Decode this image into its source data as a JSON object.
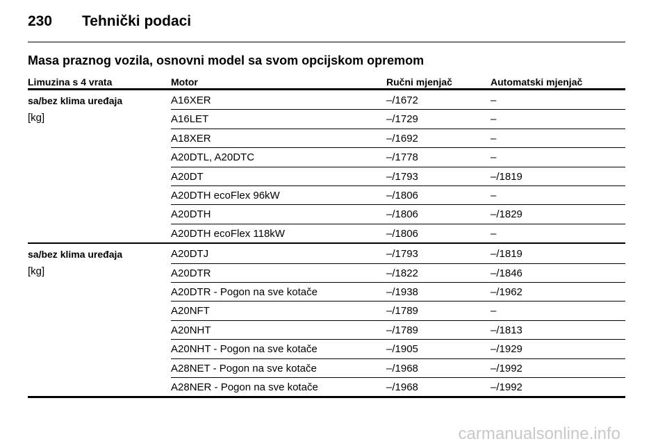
{
  "header": {
    "page_number": "230",
    "title": "Tehnički podaci"
  },
  "section_title": "Masa praznog vozila, osnovni model sa svom opcijskom opremom",
  "table": {
    "columns": [
      "Limuzina s 4 vrata",
      "Motor",
      "Ručni mjenjač",
      "Automatski mjenjač"
    ],
    "groups": [
      {
        "label": "sa/bez klima uređaja",
        "unit": "[kg]",
        "rows": [
          [
            "A16XER",
            "–/1672",
            "–"
          ],
          [
            "A16LET",
            "–/1729",
            "–"
          ],
          [
            "A18XER",
            "–/1692",
            "–"
          ],
          [
            "A20DTL, A20DTC",
            "–/1778",
            "–"
          ],
          [
            "A20DT",
            "–/1793",
            "–/1819"
          ],
          [
            "A20DTH ecoFlex 96kW",
            "–/1806",
            "–"
          ],
          [
            "A20DTH",
            "–/1806",
            "–/1829"
          ],
          [
            "A20DTH ecoFlex 118kW",
            "–/1806",
            "–"
          ]
        ]
      },
      {
        "label": "sa/bez klima uređaja",
        "unit": "[kg]",
        "rows": [
          [
            "A20DTJ",
            "–/1793",
            "–/1819"
          ],
          [
            "A20DTR",
            "–/1822",
            "–/1846"
          ],
          [
            "A20DTR - Pogon na sve kotače",
            "–/1938",
            "–/1962"
          ],
          [
            "A20NFT",
            "–/1789",
            "–"
          ],
          [
            "A20NHT",
            "–/1789",
            "–/1813"
          ],
          [
            "A20NHT - Pogon na sve kotače",
            "–/1905",
            "–/1929"
          ],
          [
            "A28NET - Pogon na sve kotače",
            "–/1968",
            "–/1992"
          ],
          [
            "A28NER - Pogon na sve kotače",
            "–/1968",
            "–/1992"
          ]
        ]
      }
    ]
  },
  "watermark": "carmanualsonline.info"
}
